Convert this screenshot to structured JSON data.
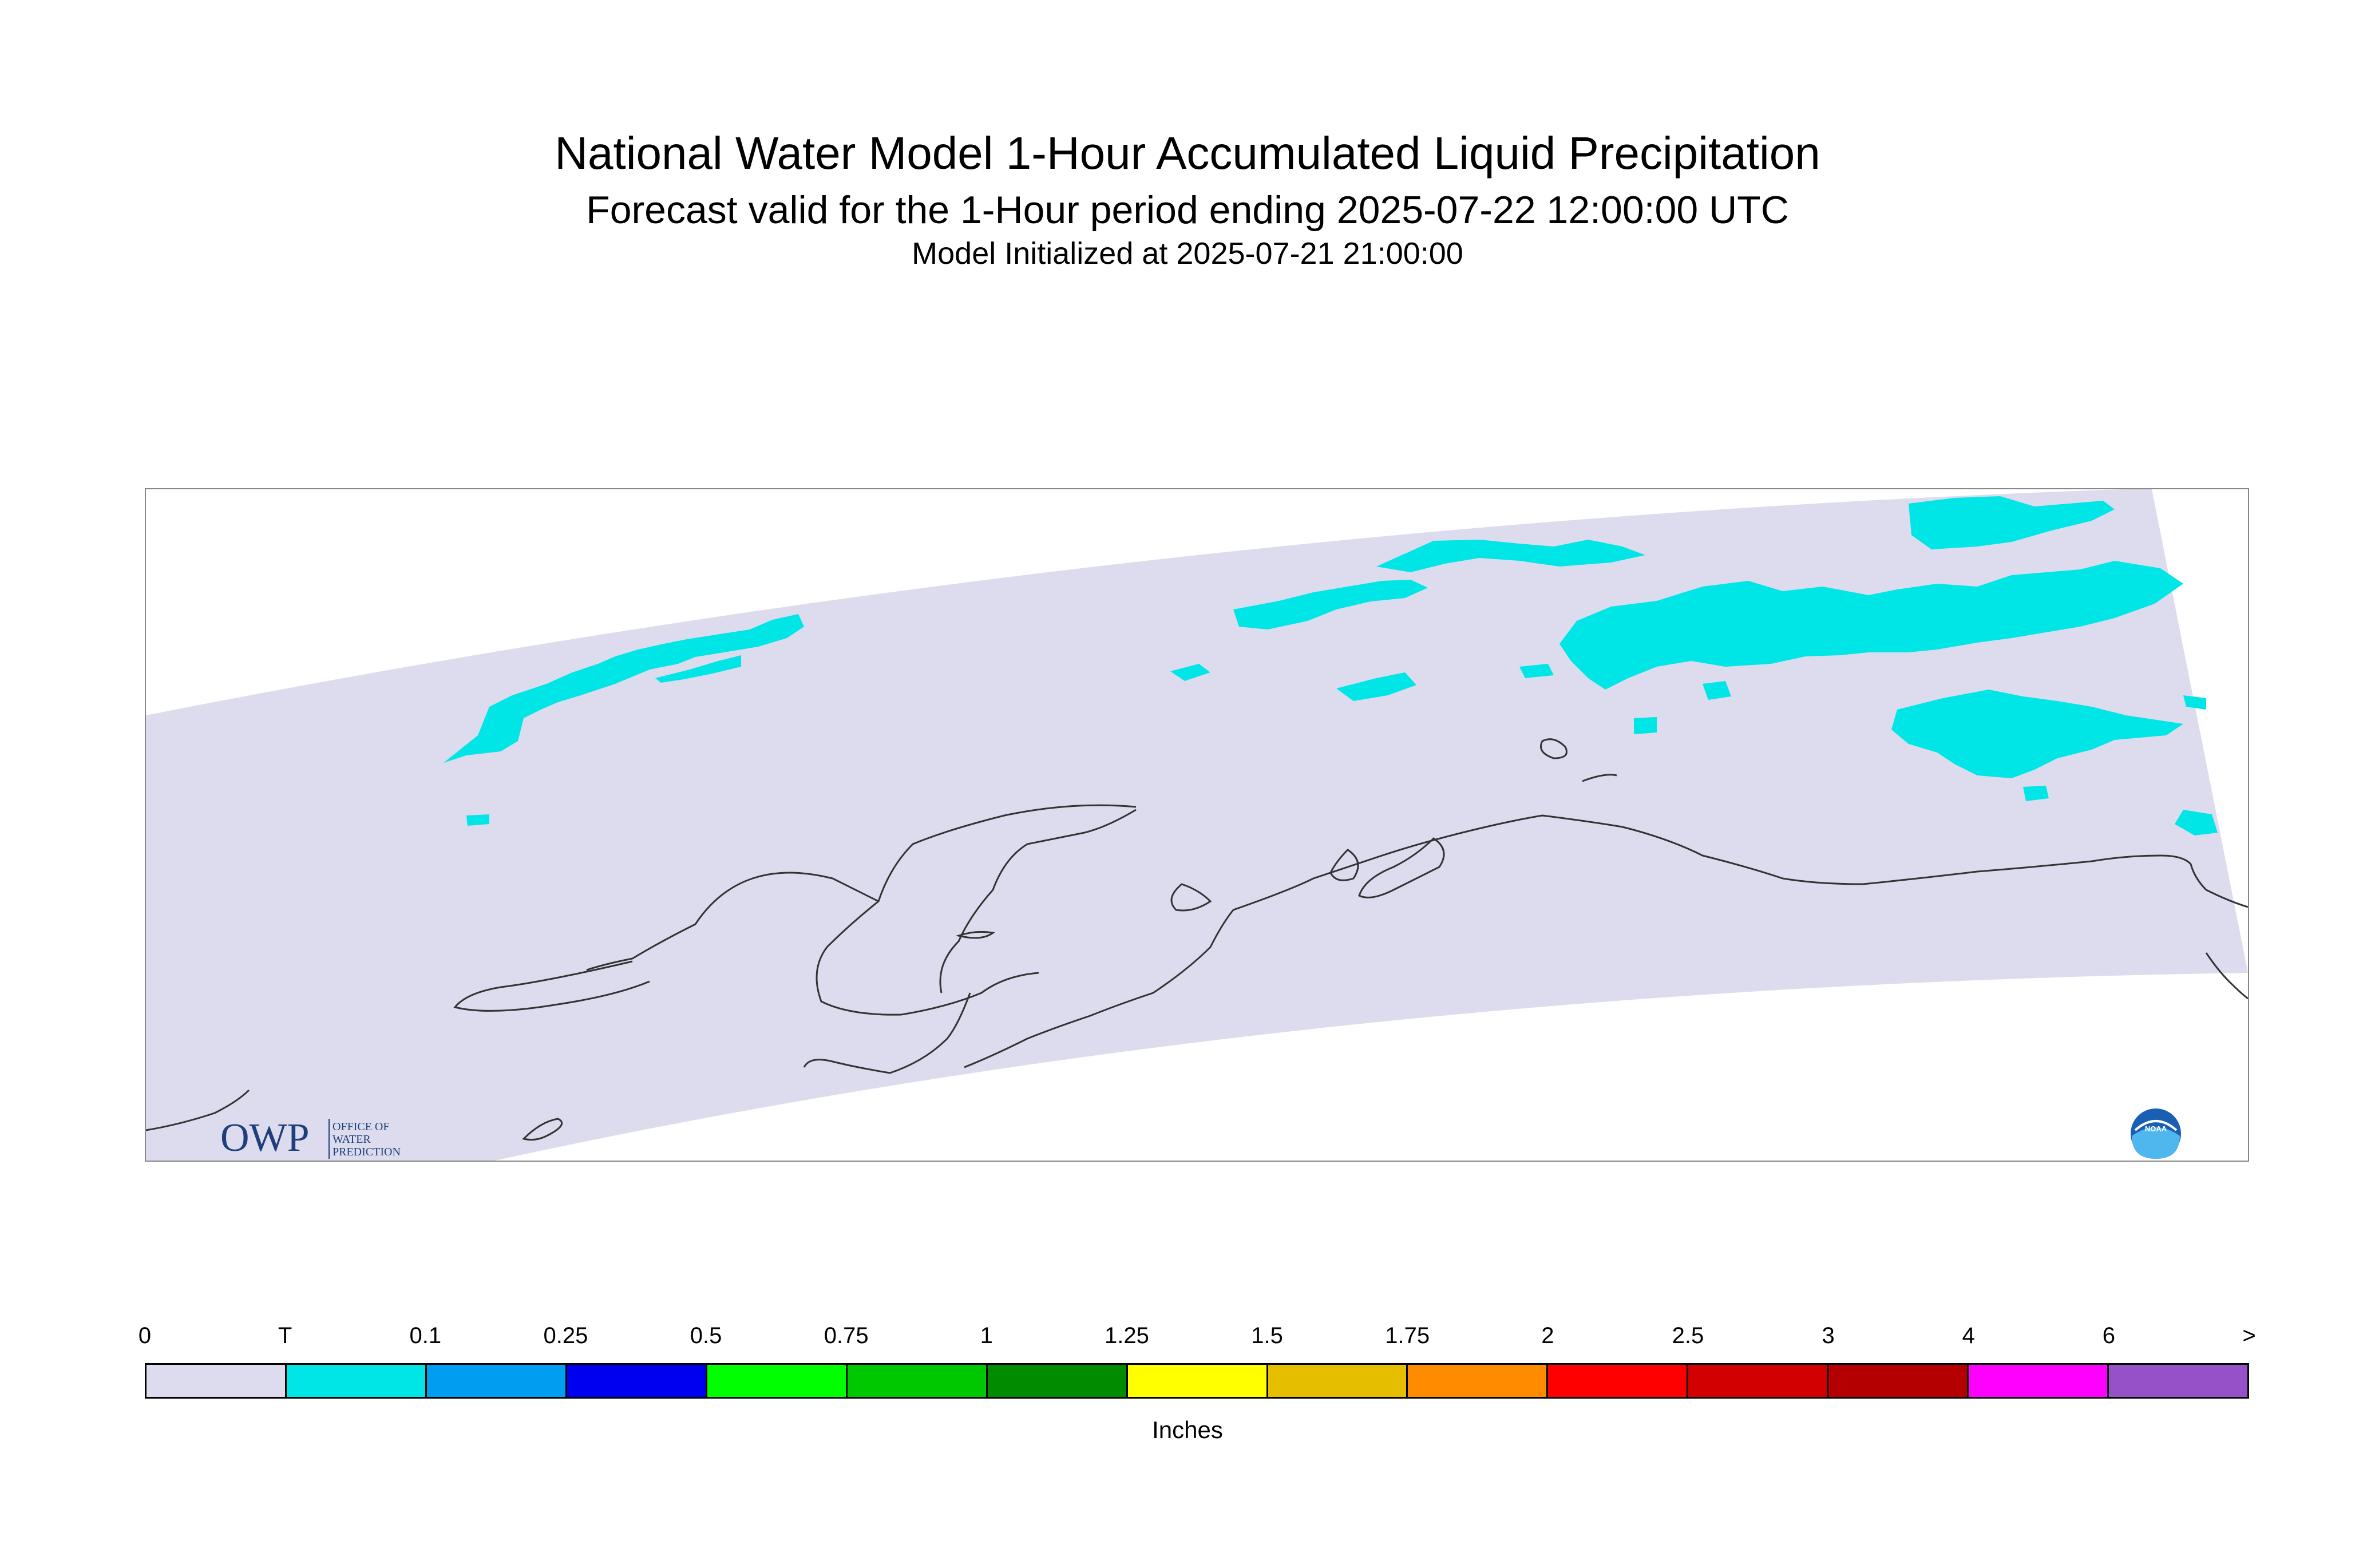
{
  "header": {
    "title": "National Water Model 1-Hour Accumulated Liquid Precipitation",
    "subtitle": "Forecast valid for the 1-Hour period ending 2025-07-22 12:00:00 UTC",
    "init_line": "Model Initialized at 2025-07-21 21:00:00"
  },
  "map": {
    "domain_fill_color": "#dcdcee",
    "precip_color_trace": "#00e6e6",
    "coastline_color": "#333333",
    "owp_logo": {
      "mark": "OWP",
      "line1": "OFFICE OF",
      "line2": "WATER",
      "line3": "PREDICTION",
      "color": "#1f3f7a"
    },
    "noaa_logo": {
      "text": "NOAA",
      "color": "#1a5fb4"
    }
  },
  "legend": {
    "tick_labels": [
      "0",
      "T",
      "0.1",
      "0.25",
      "0.5",
      "0.75",
      "1",
      "1.25",
      "1.5",
      "1.75",
      "2",
      "2.5",
      "3",
      "4",
      "6",
      ">"
    ],
    "colors": [
      "#dcdcee",
      "#00e6e6",
      "#009ef0",
      "#0000f0",
      "#00ff00",
      "#00c800",
      "#008c00",
      "#ffff00",
      "#e6be00",
      "#ff8c00",
      "#ff0000",
      "#d20000",
      "#b40000",
      "#ff00ff",
      "#9650c8"
    ],
    "units": "Inches"
  }
}
